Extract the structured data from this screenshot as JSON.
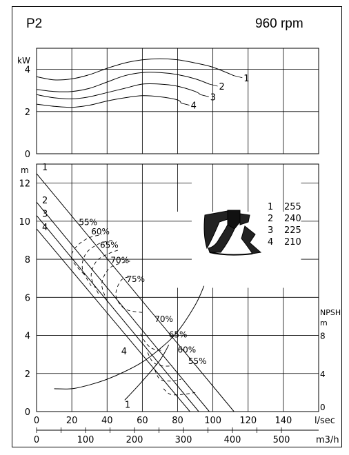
{
  "header": {
    "title": "P2",
    "speed": "960 rpm"
  },
  "chart_data": [
    {
      "type": "line",
      "panel": "power",
      "ylabel": "kW",
      "ylim": [
        0,
        5
      ],
      "xlim": [
        0,
        160
      ],
      "grid": true,
      "y_ticks": [
        "0",
        "2",
        "4"
      ],
      "y_tick_values": [
        0,
        2,
        4
      ],
      "series": [
        {
          "name": "1",
          "x": [
            0,
            10,
            20,
            30,
            40,
            50,
            60,
            70,
            80,
            90,
            100,
            112
          ],
          "y": [
            3.65,
            3.5,
            3.55,
            3.75,
            4.05,
            4.3,
            4.45,
            4.5,
            4.45,
            4.3,
            4.1,
            3.7
          ]
        },
        {
          "name": "2",
          "x": [
            0,
            10,
            20,
            30,
            40,
            50,
            60,
            70,
            80,
            90,
            98
          ],
          "y": [
            3.05,
            2.95,
            2.95,
            3.1,
            3.4,
            3.7,
            3.85,
            3.85,
            3.75,
            3.55,
            3.3
          ]
        },
        {
          "name": "3",
          "x": [
            0,
            10,
            20,
            30,
            40,
            50,
            60,
            70,
            80,
            90,
            93
          ],
          "y": [
            2.8,
            2.65,
            2.6,
            2.7,
            2.9,
            3.1,
            3.3,
            3.3,
            3.2,
            2.95,
            2.8
          ]
        },
        {
          "name": "4",
          "x": [
            0,
            10,
            20,
            30,
            40,
            50,
            60,
            70,
            80,
            82
          ],
          "y": [
            2.35,
            2.25,
            2.2,
            2.3,
            2.5,
            2.65,
            2.75,
            2.7,
            2.55,
            2.4
          ]
        }
      ]
    },
    {
      "type": "line",
      "panel": "head",
      "ylabel": "m",
      "ylim": [
        0,
        13
      ],
      "xlim": [
        0,
        160
      ],
      "grid": true,
      "y_ticks": [
        "0",
        "2",
        "4",
        "6",
        "8",
        "10",
        "12"
      ],
      "y_tick_values": [
        0,
        2,
        4,
        6,
        8,
        10,
        12
      ],
      "x_label_flow_ls": "l/sec",
      "x_ticks_ls": [
        "0",
        "20",
        "40",
        "60",
        "80",
        "100",
        "120",
        "140"
      ],
      "x_tick_values_ls": [
        0,
        20,
        40,
        60,
        80,
        100,
        120,
        140
      ],
      "x_label_flow_m3h": "m3/h",
      "x_ticks_m3h": [
        "0",
        "100",
        "200",
        "300",
        "400",
        "500"
      ],
      "x_tick_values_m3h": [
        0,
        100,
        200,
        300,
        400,
        500
      ],
      "npsh_label": "NPSH",
      "npsh_unit": "m",
      "npsh_ticks": [
        "0",
        "4",
        "8"
      ],
      "npsh_tick_values": [
        0,
        4,
        8
      ],
      "npsh_ylim": [
        0,
        26
      ],
      "series": [
        {
          "name": "1",
          "x": [
            0,
            112
          ],
          "y": [
            12.5,
            0
          ]
        },
        {
          "name": "2",
          "x": [
            0,
            98
          ],
          "y": [
            11.0,
            0
          ]
        },
        {
          "name": "3",
          "x": [
            0,
            92
          ],
          "y": [
            10.3,
            0
          ]
        },
        {
          "name": "4",
          "x": [
            0,
            87
          ],
          "y": [
            9.6,
            0
          ]
        }
      ],
      "npsh_curves": [
        {
          "name": "1",
          "x": [
            10,
            20,
            30,
            40,
            50,
            60,
            70,
            80,
            90,
            95
          ],
          "y": [
            1.2,
            1.2,
            1.4,
            1.7,
            2.1,
            2.6,
            3.3,
            4.2,
            5.6,
            6.6
          ]
        },
        {
          "name": "4",
          "x": [
            50,
            60,
            70,
            75
          ],
          "y": [
            0.6,
            1.6,
            2.7,
            3.5
          ]
        }
      ],
      "impeller_diameters_mm": [
        {
          "curve": "1",
          "diameter": "255"
        },
        {
          "curve": "2",
          "diameter": "240"
        },
        {
          "curve": "3",
          "diameter": "225"
        },
        {
          "curve": "4",
          "diameter": "210"
        }
      ],
      "efficiency_labels_upper": [
        "55%",
        "60%",
        "65%",
        "70%",
        "75%"
      ],
      "efficiency_labels_lower": [
        "70%",
        "65%",
        "60%",
        "55%"
      ]
    }
  ]
}
